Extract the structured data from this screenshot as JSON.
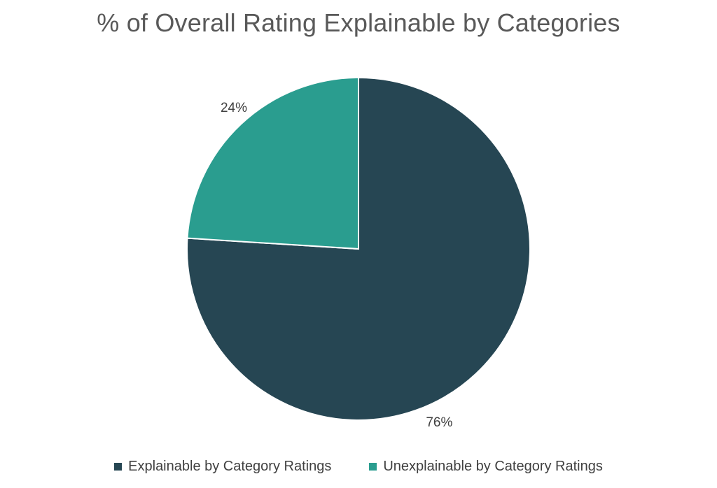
{
  "chart_data": {
    "type": "pie",
    "title": "% of Overall Rating Explainable by Categories",
    "categories": [
      "Explainable by Category Ratings",
      "Unexplainable by Category Ratings"
    ],
    "values": [
      76,
      24
    ],
    "data_labels": [
      "76%",
      "24%"
    ],
    "colors": [
      "#264653",
      "#2a9d8f"
    ],
    "start_angle_deg": 0,
    "direction": "clockwise",
    "legend_position": "bottom"
  }
}
